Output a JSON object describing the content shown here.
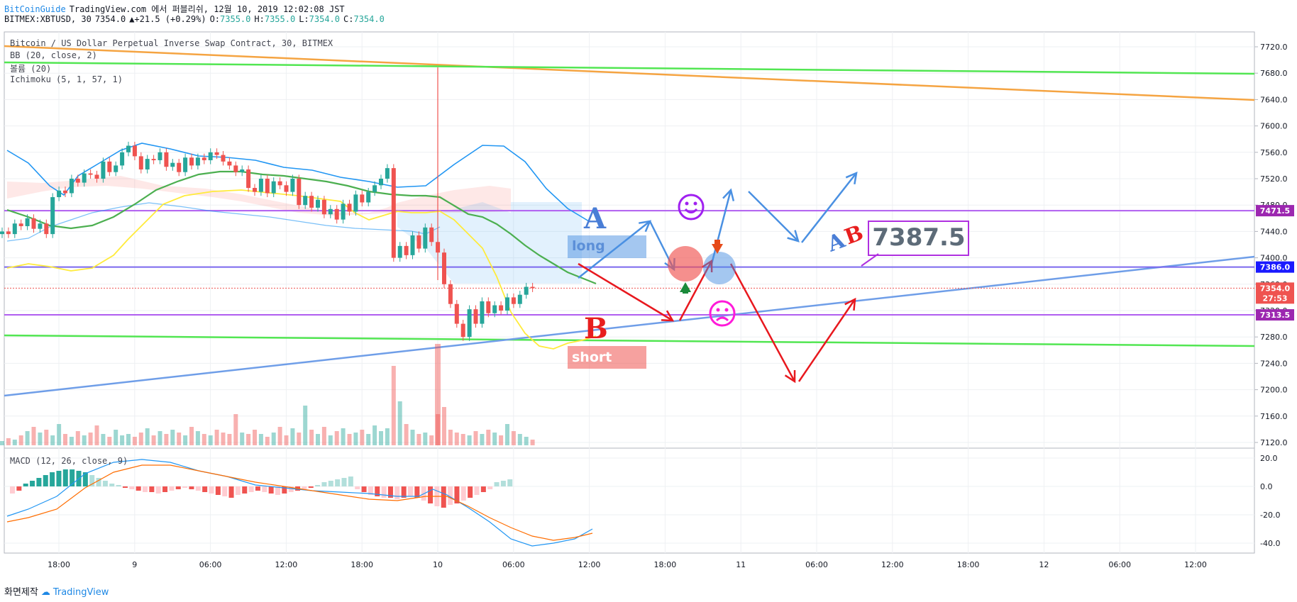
{
  "header": {
    "brand": "BitCoinGuide",
    "published": "TradingView.com 에서 퍼블리쉬, 12월 10, 2019 12:02:08 JST",
    "symbol": "BITMEX:XBTUSD, 30",
    "last": "7354.0",
    "change": "+21.5 (+0.29%)",
    "o_label": "O:",
    "o": "7355.0",
    "h_label": "H:",
    "h": "7355.0",
    "l_label": "L:",
    "l": "7354.0",
    "c_label": "C:",
    "c": "7354.0"
  },
  "legend": {
    "title": "Bitcoin / US Dollar Perpetual Inverse Swap Contract, 30, BITMEX",
    "bb": "BB (20, close, 2)",
    "volume": "볼륨 (20)",
    "ichimoku": "Ichimoku (5, 1, 57, 1)",
    "macd": "MACD (12, 26, close, 9)"
  },
  "annotations": {
    "label_a": "A",
    "label_b": "B",
    "long": "long",
    "short": "short",
    "ab_a": "A",
    "ab_b": "B",
    "callout": "7387.5"
  },
  "price_tags": {
    "t1": "7471.5",
    "t2": "7386.0",
    "t3": "7354.0",
    "t4": "27:53",
    "t5": "7313.5"
  },
  "footer": {
    "label": "화면제작",
    "brand": "TradingView"
  },
  "colors": {
    "up": "#26a69a",
    "down": "#ef5350",
    "bb": "#2196f3",
    "ichimoku_conv": "#ffeb3b",
    "ichimoku_base": "#4caf50",
    "trend_green": "#52e652",
    "trend_orange": "#f5a442",
    "trend_blue": "#6f9ee8",
    "level": "#b05ef0",
    "arrow_blue": "#4a90e2",
    "arrow_red": "#e8181e"
  },
  "chart_data": {
    "type": "candlestick",
    "price_axis": {
      "ylim": [
        7120,
        7720
      ],
      "ticks": [
        7120,
        7160,
        7200,
        7240,
        7280,
        7320,
        7360,
        7400,
        7440,
        7480,
        7520,
        7560,
        7600,
        7640,
        7680,
        7720
      ]
    },
    "tick_labels": [
      "7720.0",
      "7680.0",
      "7640.0",
      "7600.0",
      "7560.0",
      "7520.0",
      "7480.0",
      "7440.0",
      "7400.0",
      "7360.0",
      "7320.0",
      "7280.0",
      "7240.0",
      "7200.0",
      "7160.0",
      "7120.0"
    ],
    "macd_axis": {
      "ylim": [
        -45,
        25
      ],
      "ticks": [
        20,
        0,
        -20,
        -40
      ],
      "tick_labels": [
        "20.0",
        "0.0",
        "-20.0",
        "-40.0"
      ]
    },
    "time_axis": {
      "labels": [
        "18:00",
        "9",
        "06:00",
        "12:00",
        "18:00",
        "10",
        "06:00",
        "12:00",
        "18:00",
        "11",
        "06:00",
        "12:00",
        "18:00",
        "12",
        "06:00",
        "12:00"
      ],
      "bar_index": [
        0,
        12,
        24,
        36,
        48,
        60,
        72,
        84,
        96,
        108,
        120,
        132,
        144,
        156,
        168,
        180
      ]
    },
    "levels": [
      7471.5,
      7386.0,
      7313.5
    ],
    "last_price": 7354.0,
    "candles_close": [
      7440,
      7436,
      7452,
      7448,
      7460,
      7444,
      7452,
      7436,
      7492,
      7502,
      7498,
      7520,
      7514,
      7528,
      7526,
      7520,
      7546,
      7530,
      7540,
      7560,
      7570,
      7554,
      7534,
      7550,
      7548,
      7560,
      7538,
      7544,
      7530,
      7552,
      7540,
      7552,
      7548,
      7560,
      7556,
      7546,
      7540,
      7530,
      7534,
      7506,
      7500,
      7520,
      7498,
      7516,
      7510,
      7500,
      7520,
      7480,
      7494,
      7476,
      7488,
      7466,
      7474,
      7458,
      7482,
      7470,
      7496,
      7484,
      7500,
      7510,
      7520,
      7536,
      7400,
      7418,
      7404,
      7434,
      7414,
      7446,
      7424,
      7408,
      7360,
      7330,
      7300,
      7280,
      7322,
      7300,
      7334,
      7316,
      7328,
      7320,
      7340,
      7330,
      7344,
      7356,
      7354
    ],
    "series": [
      {
        "name": "BB (20, close, 2)"
      },
      {
        "name": "Ichimoku (5, 1, 57, 1)"
      },
      {
        "name": "MACD (12, 26, close, 9)"
      }
    ]
  }
}
